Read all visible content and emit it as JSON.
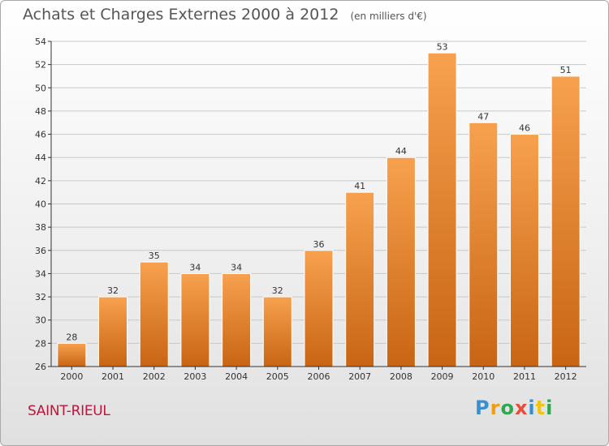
{
  "title": "Achats et Charges Externes 2000 à 2012",
  "unit": "(en milliers d'€)",
  "commune": "SAINT-RIEUL",
  "logo": {
    "letters": [
      {
        "ch": "P",
        "color": "#3a8fd1"
      },
      {
        "ch": "r",
        "color": "#f39c12"
      },
      {
        "ch": "o",
        "color": "#2fa84f"
      },
      {
        "ch": "x",
        "color": "#e74c3c"
      },
      {
        "ch": "i",
        "color": "#3a8fd1"
      },
      {
        "ch": "t",
        "color": "#f1c40f"
      },
      {
        "ch": "i",
        "color": "#2fa84f"
      }
    ]
  },
  "colors": {
    "bar_top": "#f7a14e",
    "bar_bottom": "#c86514",
    "axis": "#333333",
    "grid": "#c8c8c8"
  },
  "chart_data": {
    "type": "bar",
    "categories": [
      "2000",
      "2001",
      "2002",
      "2003",
      "2004",
      "2005",
      "2006",
      "2007",
      "2008",
      "2009",
      "2010",
      "2011",
      "2012"
    ],
    "values": [
      28,
      32,
      35,
      34,
      34,
      32,
      36,
      41,
      44,
      53,
      47,
      46,
      51
    ],
    "ylim": [
      26,
      54
    ],
    "yticks": [
      26,
      28,
      30,
      32,
      34,
      36,
      38,
      40,
      42,
      44,
      46,
      48,
      50,
      52,
      54
    ],
    "grid": true,
    "data_labels": true
  }
}
